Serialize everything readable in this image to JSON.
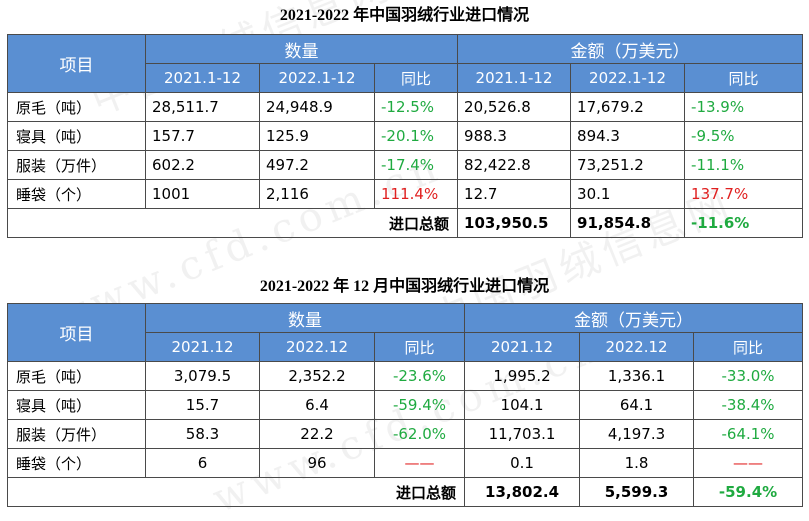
{
  "table1": {
    "title": "2021-2022 年中国羽绒行业进口情况",
    "item_header": "项目",
    "qty_header": "数量",
    "amt_header": "金额（万美元）",
    "sub_headers": [
      "2021.1-12",
      "2022.1-12",
      "同比",
      "2021.1-12",
      "2022.1-12",
      "同比"
    ],
    "rows": [
      {
        "label": "原毛（吨）",
        "c": [
          "28,511.7",
          "24,948.9",
          "-12.5%",
          "20,526.8",
          "17,679.2",
          "-13.9%"
        ]
      },
      {
        "label": "寝具（吨）",
        "c": [
          "157.7",
          "125.9",
          "-20.1%",
          "988.3",
          "894.3",
          "-9.5%"
        ]
      },
      {
        "label": "服装（万件）",
        "c": [
          "602.2",
          "497.2",
          "-17.4%",
          "82,422.8",
          "73,251.2",
          "-11.1%"
        ]
      },
      {
        "label": "睡袋（个）",
        "c": [
          "1001",
          "2,116",
          "111.4%",
          "12.7",
          "30.1",
          "137.7%"
        ]
      }
    ],
    "total_label": "进口总额",
    "total": [
      "103,950.5",
      "91,854.8",
      "-11.6%"
    ]
  },
  "table2": {
    "title": "2021-2022 年 12 月中国羽绒行业进口情况",
    "item_header": "项目",
    "qty_header": "数量",
    "amt_header": "金额（万美元）",
    "sub_headers": [
      "2021.12",
      "2022.12",
      "同比",
      "2021.12",
      "2022.12",
      "同比"
    ],
    "rows": [
      {
        "label": "原毛（吨）",
        "c": [
          "3,079.5",
          "2,352.2",
          "-23.6%",
          "1,995.2",
          "1,336.1",
          "-33.0%"
        ]
      },
      {
        "label": "寝具（吨）",
        "c": [
          "15.7",
          "6.4",
          "-59.4%",
          "104.1",
          "64.1",
          "-38.4%"
        ]
      },
      {
        "label": "服装（万件）",
        "c": [
          "58.3",
          "22.2",
          "-62.0%",
          "11,703.1",
          "4,197.3",
          "-64.1%"
        ]
      },
      {
        "label": "睡袋（个）",
        "c": [
          "6",
          "96",
          "——",
          "0.1",
          "1.8",
          "——"
        ]
      }
    ],
    "total_label": "进口总额",
    "total": [
      "13,802.4",
      "5,599.3",
      "-59.4%"
    ]
  },
  "colors": {
    "header_bg": "#5a8fd2",
    "positive": "#e02020",
    "negative": "#1faa40"
  },
  "watermark": [
    "中国羽绒信息网",
    "www.cfd.com.cn"
  ]
}
